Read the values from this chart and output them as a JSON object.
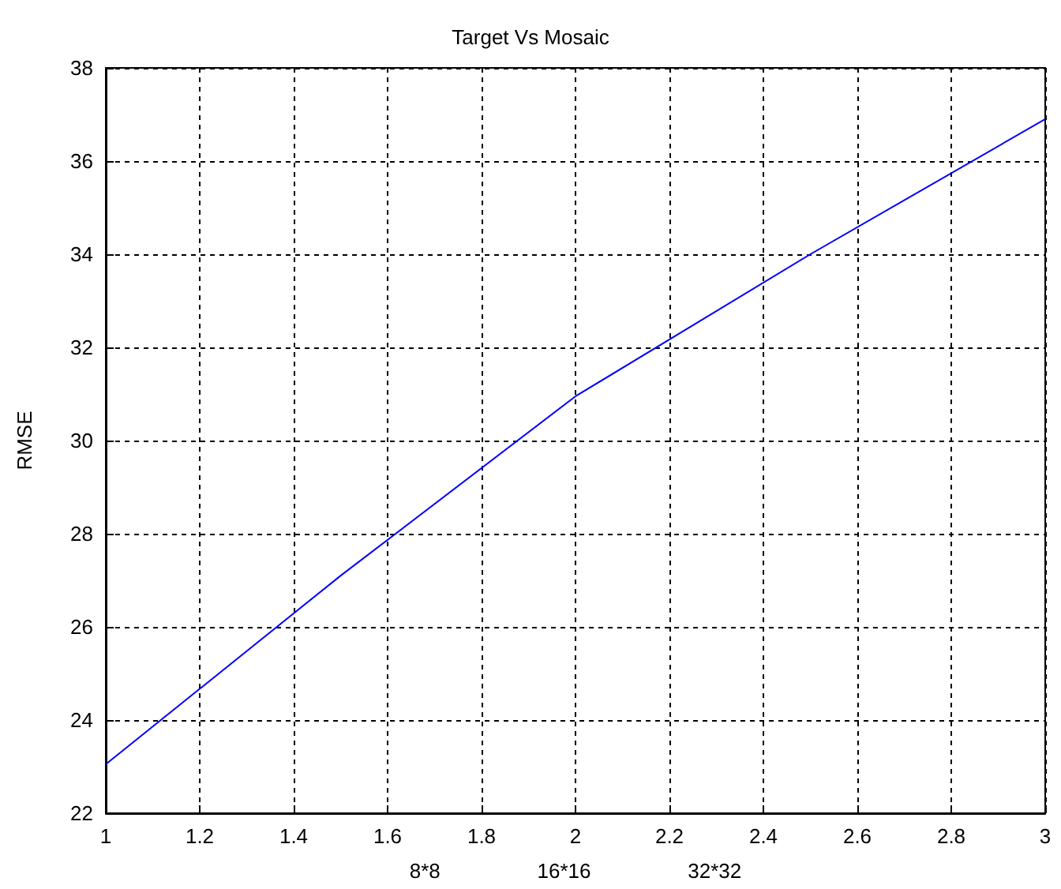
{
  "chart_data": {
    "type": "line",
    "title": "Target Vs Mosaic",
    "xlabel": "8*8                 16*16                 32*32",
    "ylabel": "RMSE",
    "x": [
      1,
      1.5,
      2,
      2.5,
      3
    ],
    "series": [
      {
        "color": "#0000ff",
        "values": [
          23.05,
          27.1,
          30.95,
          34.0,
          36.9
        ]
      }
    ],
    "xlim": [
      1,
      3
    ],
    "xticks": [
      1,
      1.2,
      1.4,
      1.6,
      1.8,
      2,
      2.2,
      2.4,
      2.6,
      2.8,
      3
    ],
    "ylim": [
      22,
      38
    ],
    "yticks": [
      22,
      24,
      26,
      28,
      30,
      32,
      34,
      36,
      38
    ],
    "grid": true,
    "marker": "none",
    "line_style": "solid"
  }
}
